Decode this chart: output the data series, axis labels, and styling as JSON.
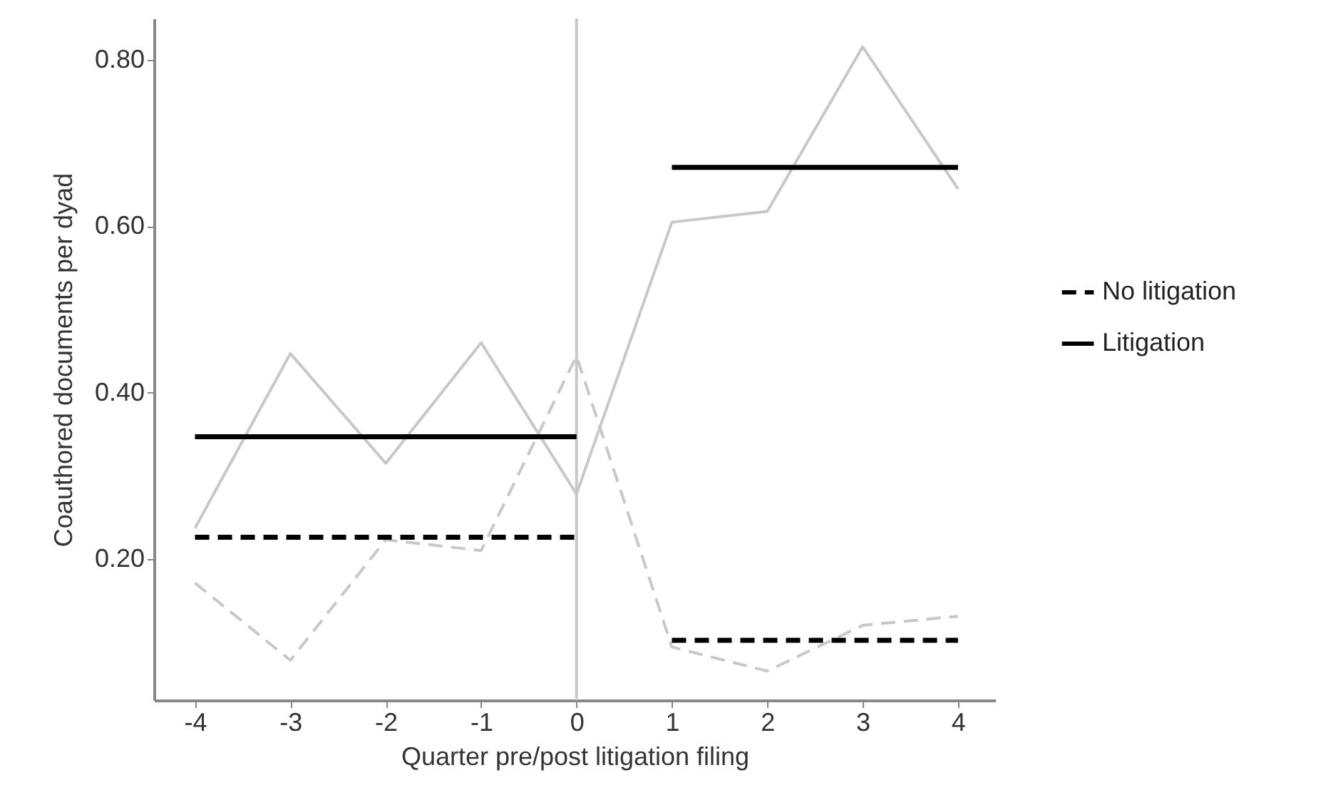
{
  "chart_data": {
    "type": "line",
    "xlabel": "Quarter pre/post litigation filing",
    "ylabel": "Coauthored documents per dyad",
    "x": [
      -4,
      -3,
      -2,
      -1,
      0,
      1,
      2,
      3,
      4
    ],
    "xlim": [
      -4.43,
      4.39
    ],
    "xticks": [
      -4,
      -3,
      -2,
      -1,
      0,
      1,
      2,
      3,
      4
    ],
    "ylim": [
      0.03,
      0.85
    ],
    "yticks": [
      {
        "value": 0.2,
        "label": "0.20"
      },
      {
        "value": 0.4,
        "label": "0.40"
      },
      {
        "value": 0.6,
        "label": "0.60"
      },
      {
        "value": 0.8,
        "label": "0.80"
      }
    ],
    "series": [
      {
        "color": "#c8c8c8",
        "line_style": "dashed",
        "values": [
          0.171,
          0.078,
          0.223,
          0.21,
          0.444,
          0.094,
          0.065,
          0.12,
          0.131
        ]
      },
      {
        "color": "#c8c8c8",
        "line_style": "solid",
        "values": [
          0.237,
          0.447,
          0.315,
          0.46,
          0.278,
          0.605,
          0.618,
          0.816,
          0.645
        ]
      },
      {
        "name": "No litigation",
        "color": "#000000",
        "line_style": "dashed",
        "x": [
          -4,
          0,
          0.5,
          1,
          4
        ],
        "values": [
          0.226,
          0.226,
          null,
          0.102,
          0.102
        ]
      },
      {
        "name": "Litigation",
        "color": "#000000",
        "line_style": "solid",
        "x": [
          -4,
          0,
          0.5,
          1,
          4
        ],
        "values": [
          0.347,
          0.347,
          null,
          0.671,
          0.671
        ]
      }
    ],
    "ref_lines": [
      {
        "axis": "x",
        "value": 0,
        "color": "#c8c8c8"
      }
    ],
    "grid": false,
    "legend": "right"
  }
}
